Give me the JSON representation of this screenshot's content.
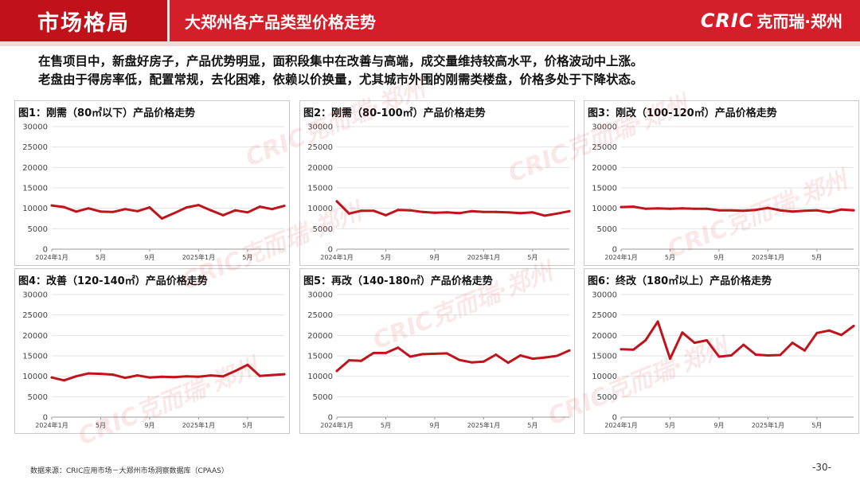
{
  "header": {
    "section": "市场格局",
    "title": "大郑州各产品类型价格走势",
    "brand_logo": "CRIC",
    "brand_cn": "克而瑞·郑州"
  },
  "intro": [
    "在售项目中，新盘好房子，产品优势明显，面积段集中在改善与高端，成交量维持较高水平，价格波动中上涨。",
    "老盘由于得房率低，配置常规，去化困难，依赖以价换量，尤其城市外围的刚需类楼盘，价格多处于下降状态。"
  ],
  "watermark": "CRIC克而瑞·郑州",
  "footer": {
    "source": "数据来源：CRIC应用市场－大郑州市场洞察数据库（CPAAS）",
    "page": "-30-"
  },
  "chart_data": [
    {
      "type": "line",
      "title": "图1：刚需（80㎡以下）产品价格走势",
      "ylim": [
        0,
        30000
      ],
      "yticks": [
        0,
        5000,
        10000,
        15000,
        20000,
        25000,
        30000
      ],
      "xticks": [
        {
          "index": 0,
          "label": "2024年1月"
        },
        {
          "index": 4,
          "label": "5月"
        },
        {
          "index": 8,
          "label": "9月"
        },
        {
          "index": 12,
          "label": "2025年1月"
        },
        {
          "index": 16,
          "label": "5月"
        }
      ],
      "color": "#c0141c",
      "values": [
        10700,
        10300,
        9200,
        10000,
        9200,
        9100,
        9800,
        9300,
        10200,
        7500,
        8800,
        10200,
        10800,
        9500,
        8300,
        9500,
        9000,
        10400,
        9800,
        10600
      ]
    },
    {
      "type": "line",
      "title": "图2：刚需（80-100㎡）产品价格走势",
      "ylim": [
        0,
        30000
      ],
      "yticks": [
        0,
        5000,
        10000,
        15000,
        20000,
        25000,
        30000
      ],
      "xticks": [
        {
          "index": 0,
          "label": "2024年1月"
        },
        {
          "index": 4,
          "label": "5月"
        },
        {
          "index": 8,
          "label": "9月"
        },
        {
          "index": 12,
          "label": "2025年1月"
        },
        {
          "index": 16,
          "label": "5月"
        }
      ],
      "color": "#c0141c",
      "values": [
        11700,
        8700,
        9400,
        9400,
        8300,
        9600,
        9500,
        9100,
        8900,
        9000,
        8800,
        9300,
        9100,
        9100,
        9000,
        8800,
        9000,
        8200,
        8700,
        9300
      ]
    },
    {
      "type": "line",
      "title": "图3：刚改（100-120㎡）产品价格走势",
      "ylim": [
        0,
        30000
      ],
      "yticks": [
        0,
        5000,
        10000,
        15000,
        20000,
        25000,
        30000
      ],
      "xticks": [
        {
          "index": 0,
          "label": "2024年1月"
        },
        {
          "index": 4,
          "label": "5月"
        },
        {
          "index": 8,
          "label": "9月"
        },
        {
          "index": 12,
          "label": "2025年1月"
        },
        {
          "index": 16,
          "label": "5月"
        }
      ],
      "color": "#c0141c",
      "values": [
        10300,
        10400,
        9900,
        10000,
        9900,
        10000,
        9900,
        9900,
        9500,
        9500,
        9400,
        9600,
        10100,
        9500,
        9200,
        9400,
        9500,
        9000,
        9700,
        9500
      ]
    },
    {
      "type": "line",
      "title": "图4：改善（120-140㎡）产品价格走势",
      "ylim": [
        0,
        30000
      ],
      "yticks": [
        0,
        5000,
        10000,
        15000,
        20000,
        25000,
        30000
      ],
      "xticks": [
        {
          "index": 0,
          "label": "2024年1月"
        },
        {
          "index": 4,
          "label": "5月"
        },
        {
          "index": 8,
          "label": "9月"
        },
        {
          "index": 12,
          "label": "2025年1月"
        },
        {
          "index": 16,
          "label": "5月"
        }
      ],
      "color": "#c0141c",
      "values": [
        9700,
        9000,
        10000,
        10700,
        10600,
        10400,
        9600,
        10200,
        9700,
        9900,
        9800,
        10000,
        9900,
        10200,
        10000,
        11300,
        12800,
        10100,
        10300,
        10500
      ]
    },
    {
      "type": "line",
      "title": "图5：再改（140-180㎡）产品价格走势",
      "ylim": [
        0,
        30000
      ],
      "yticks": [
        0,
        5000,
        10000,
        15000,
        20000,
        25000,
        30000
      ],
      "xticks": [
        {
          "index": 0,
          "label": "2024年1月"
        },
        {
          "index": 4,
          "label": "5月"
        },
        {
          "index": 8,
          "label": "9月"
        },
        {
          "index": 12,
          "label": "2025年1月"
        },
        {
          "index": 16,
          "label": "5月"
        }
      ],
      "color": "#c0141c",
      "values": [
        11300,
        13900,
        13800,
        15700,
        15700,
        17000,
        14800,
        15400,
        15500,
        15600,
        14000,
        13400,
        13600,
        15300,
        13300,
        15100,
        14300,
        14600,
        15000,
        16300
      ]
    },
    {
      "type": "line",
      "title": "图6：终改（180㎡以上）产品价格走势",
      "ylim": [
        0,
        30000
      ],
      "yticks": [
        0,
        5000,
        10000,
        15000,
        20000,
        25000,
        30000
      ],
      "xticks": [
        {
          "index": 0,
          "label": "2024年1月"
        },
        {
          "index": 4,
          "label": "5月"
        },
        {
          "index": 8,
          "label": "9月"
        },
        {
          "index": 12,
          "label": "2025年1月"
        },
        {
          "index": 16,
          "label": "5月"
        }
      ],
      "color": "#c0141c",
      "values": [
        16600,
        16500,
        18800,
        23400,
        14300,
        20700,
        18200,
        18800,
        14800,
        15100,
        17700,
        15300,
        15100,
        15200,
        18200,
        16300,
        20600,
        21200,
        20100,
        22300
      ]
    }
  ]
}
